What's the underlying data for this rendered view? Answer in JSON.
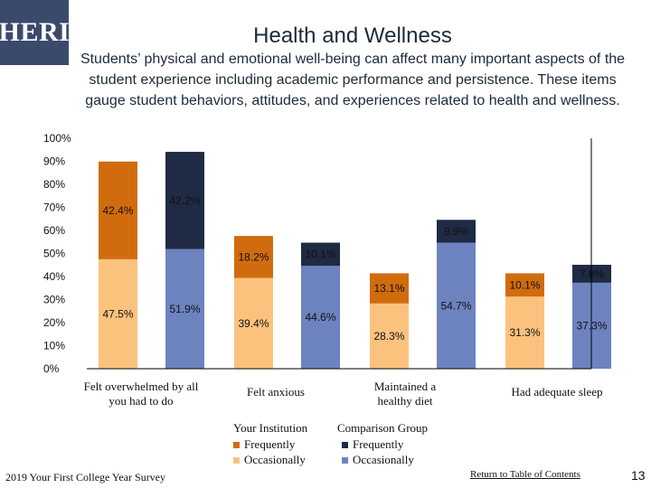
{
  "logo_text": "HERI",
  "title": "Health and Wellness",
  "subtitle": "Students’ physical and emotional well-being can affect many important aspects of the student experience including academic performance and persistence. These items gauge student behaviors, attitudes, and experiences related to health and wellness.",
  "colors": {
    "inst_frequent": "#d16c0e",
    "inst_occasional": "#fbc27e",
    "comp_frequent": "#1f2a44",
    "comp_occasional": "#6d83c0"
  },
  "chart_data": {
    "type": "bar",
    "stacked": true,
    "ylim": [
      0,
      100
    ],
    "y_ticks": [
      "0%",
      "10%",
      "20%",
      "30%",
      "40%",
      "50%",
      "60%",
      "70%",
      "80%",
      "90%",
      "100%"
    ],
    "categories": [
      "Felt overwhelmed by all you had to do",
      "Felt anxious",
      "Maintained a healthy diet",
      "Had adequate sleep"
    ],
    "bars": [
      {
        "group": "Your Institution",
        "category": 0,
        "occasionally": 47.5,
        "frequently": 42.4,
        "occ_label": "47.5%",
        "freq_label": "42.4%"
      },
      {
        "group": "Comparison Group",
        "category": 0,
        "occasionally": 51.9,
        "frequently": 42.2,
        "occ_label": "51.9%",
        "freq_label": "42.2%"
      },
      {
        "group": "Your Institution",
        "category": 1,
        "occasionally": 39.4,
        "frequently": 18.2,
        "occ_label": "39.4%",
        "freq_label": "18.2%"
      },
      {
        "group": "Comparison Group",
        "category": 1,
        "occasionally": 44.6,
        "frequently": 10.1,
        "occ_label": "44.6%",
        "freq_label": "10.1%"
      },
      {
        "group": "Your Institution",
        "category": 2,
        "occasionally": 28.3,
        "frequently": 13.1,
        "occ_label": "28.3%",
        "freq_label": "13.1%"
      },
      {
        "group": "Comparison Group",
        "category": 2,
        "occasionally": 54.7,
        "frequently": 9.9,
        "occ_label": "54.7%",
        "freq_label": "9.9%"
      },
      {
        "group": "Your Institution",
        "category": 3,
        "occasionally": 31.3,
        "frequently": 10.1,
        "occ_label": "31.3%",
        "freq_label": "10.1%"
      },
      {
        "group": "Comparison Group",
        "category": 3,
        "occasionally": 37.3,
        "frequently": 7.8,
        "occ_label": "37.3%",
        "freq_label": "7.8%"
      }
    ],
    "legend": {
      "institution_title": "Your Institution",
      "comparison_title": "Comparison Group",
      "frequently": "Frequently",
      "occasionally": "Occasionally"
    }
  },
  "footer": {
    "survey": "2019 Your First College Year Survey",
    "link": "Return to Table of Contents",
    "page": "13"
  }
}
